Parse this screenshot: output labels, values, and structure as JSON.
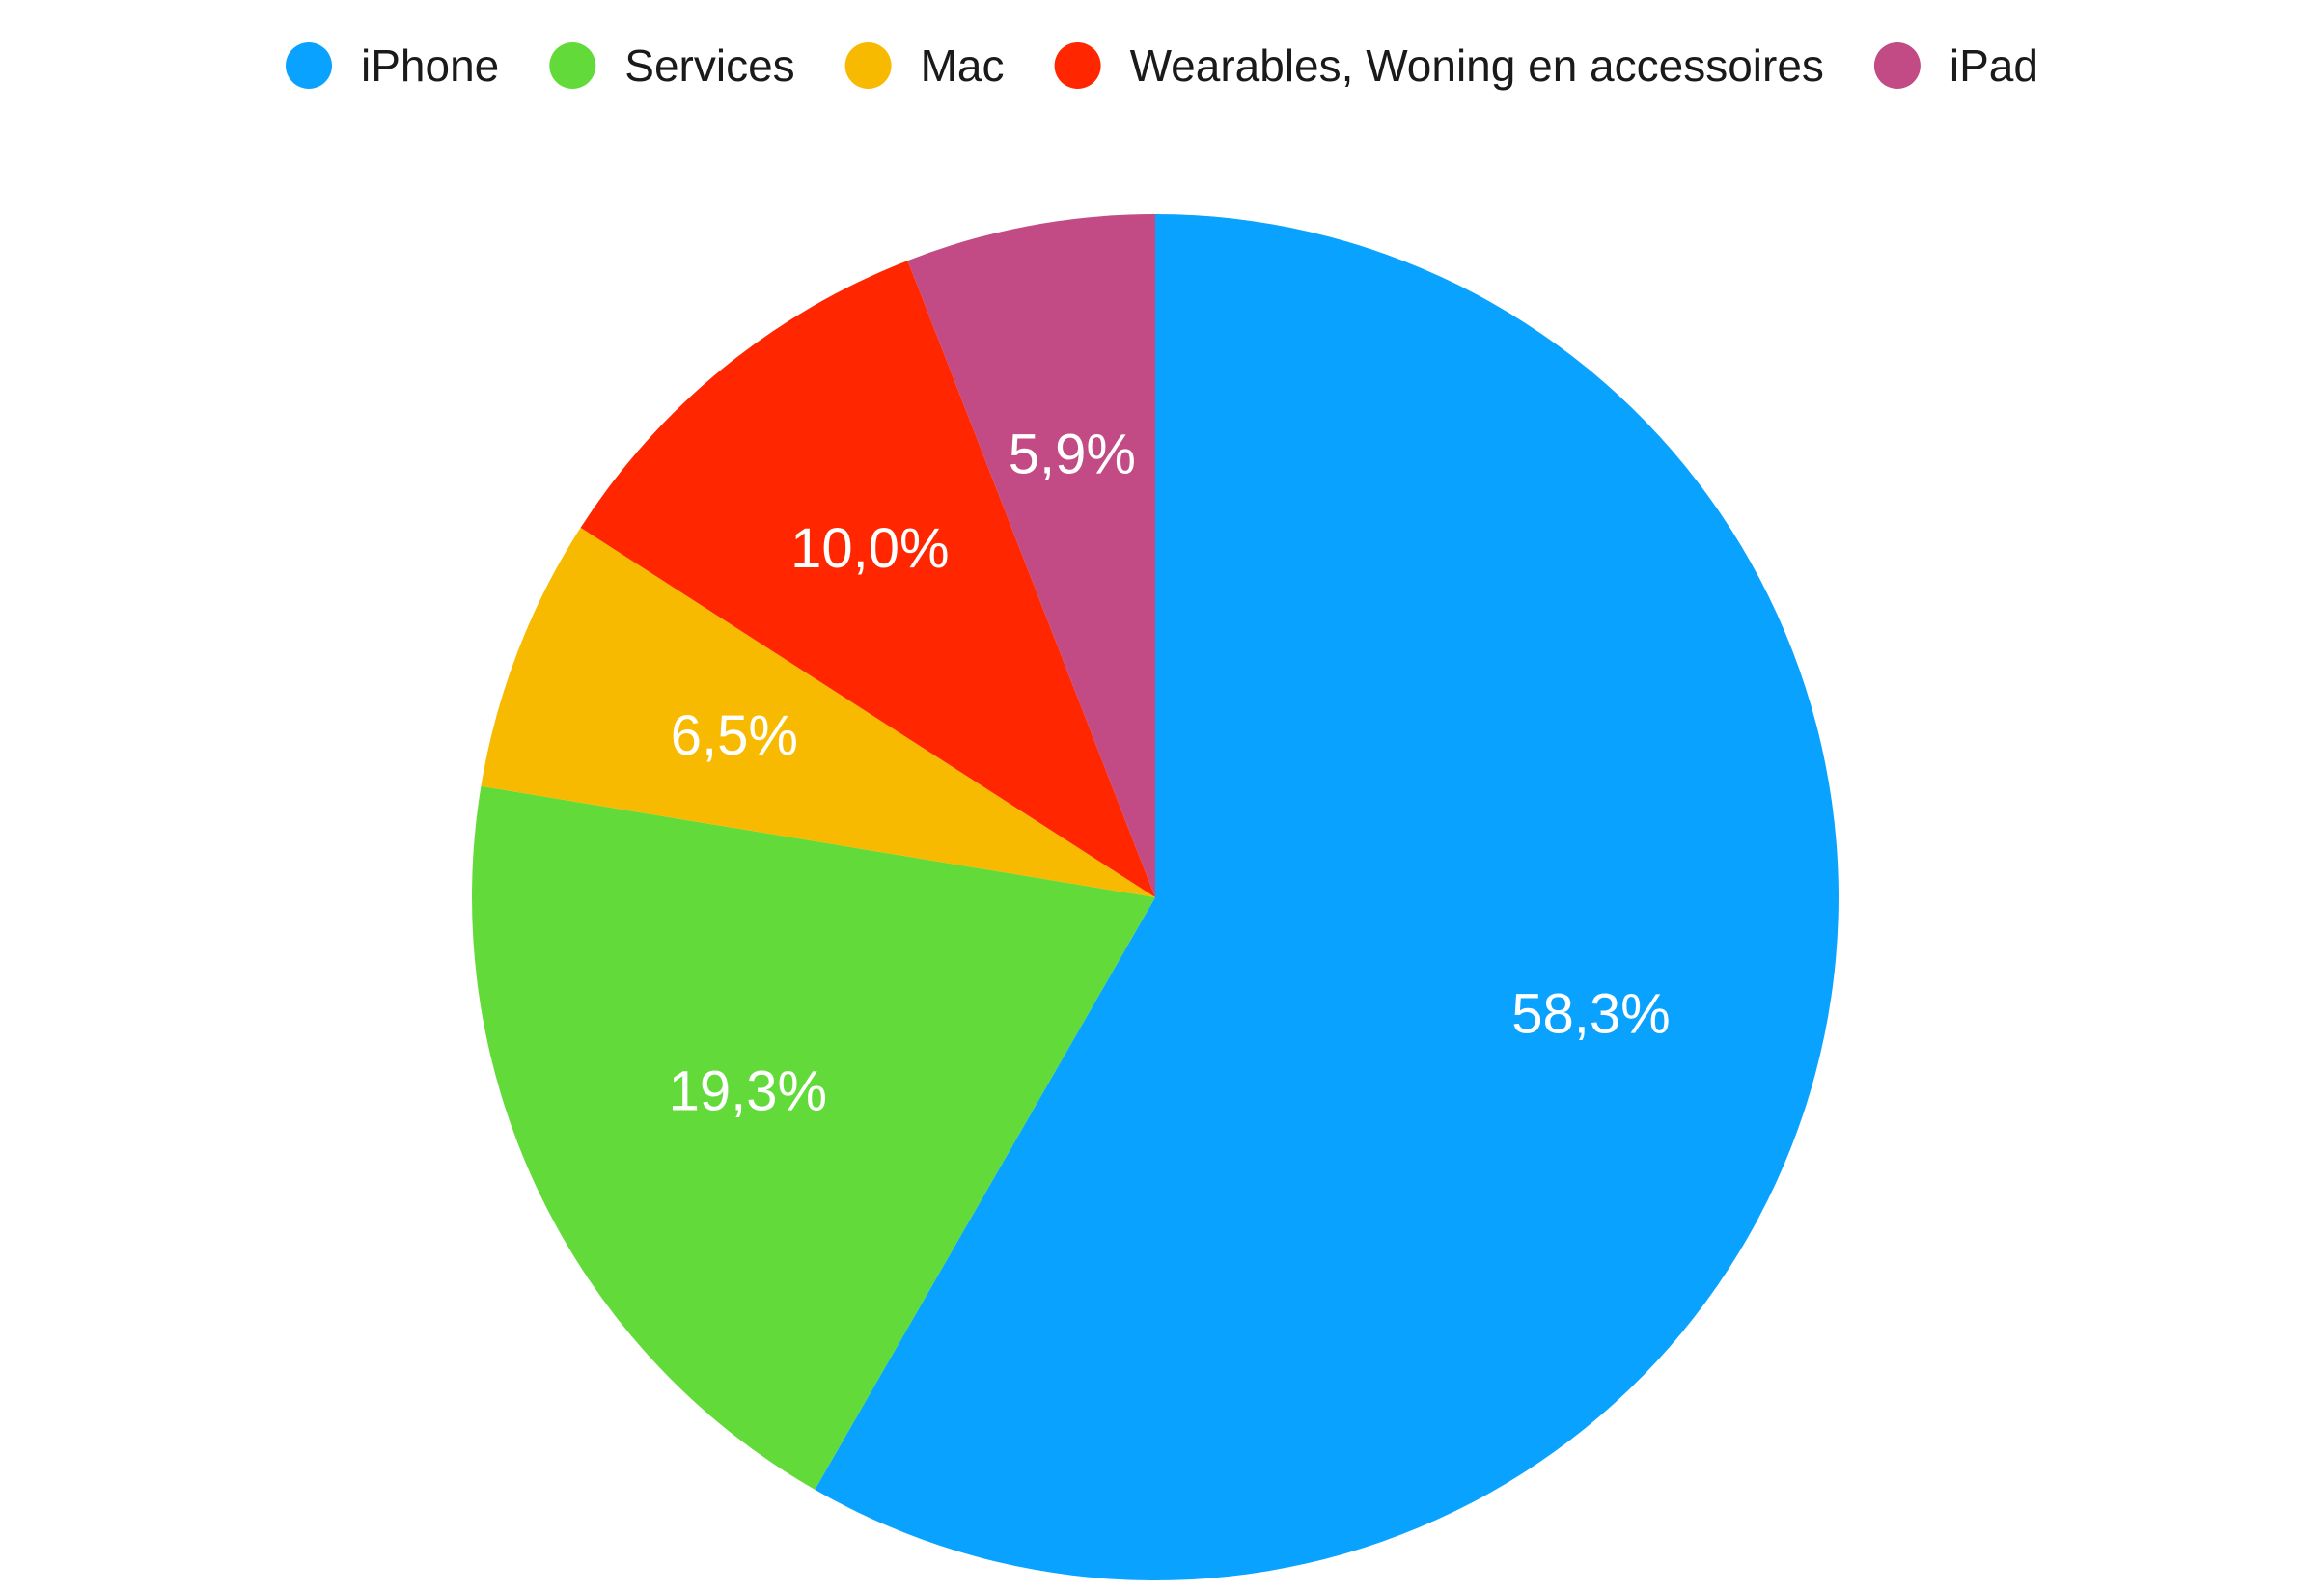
{
  "chart_data": {
    "type": "pie",
    "legend_position": "top-center",
    "start_angle": "12 o'clock",
    "direction": "clockwise",
    "slices": [
      {
        "name": "iPhone",
        "value": 58.3,
        "label": "58,3%",
        "color": "#0aa2ff"
      },
      {
        "name": "Services",
        "value": 19.3,
        "label": "19,3%",
        "color": "#62da3a"
      },
      {
        "name": "Mac",
        "value": 6.5,
        "label": "6,5%",
        "color": "#f8ba00"
      },
      {
        "name": "Wearables, Woning en accessoires",
        "value": 10.0,
        "label": "10,0%",
        "color": "#ff2600"
      },
      {
        "name": "iPad",
        "value": 5.9,
        "label": "5,9%",
        "color": "#c24b86"
      }
    ]
  }
}
